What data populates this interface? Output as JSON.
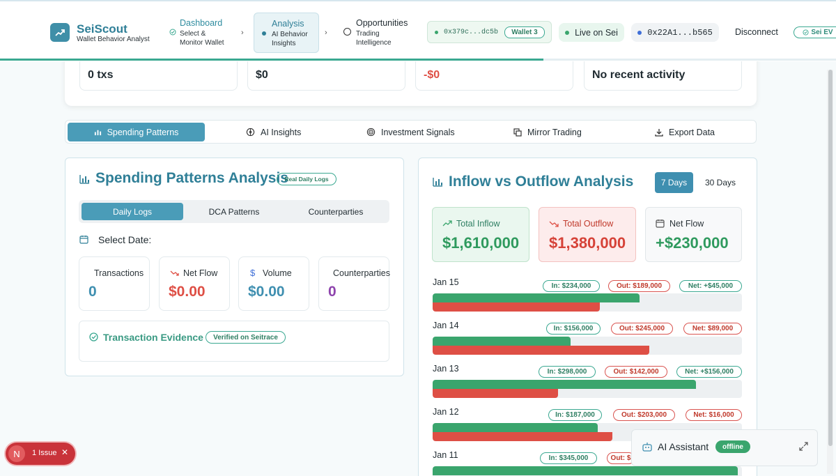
{
  "header": {
    "app_title": "SeiScout",
    "app_subtitle": "Wallet Behavior Analyst",
    "steps": [
      {
        "title": "Dashboard",
        "subtitle_line1": "Select &",
        "subtitle_line2": "Monitor Wallet"
      },
      {
        "title": "Analysis",
        "subtitle_line1": "AI Behavior",
        "subtitle_line2": "Insights"
      },
      {
        "title": "Opportunities",
        "subtitle_line1": "Trading",
        "subtitle_line2": "Intelligence"
      }
    ],
    "wallet_selector": {
      "address": "0x379c...dc5b",
      "label": "Wallet 3"
    },
    "network_status": "Live on Sei",
    "connected_address": "0x22A1...b565",
    "disconnect_label": "Disconnect",
    "sei_badge": "Sei EV",
    "progress": 0.65
  },
  "top_stats": [
    {
      "value": "0 txs"
    },
    {
      "value": "$0"
    },
    {
      "value": "-$0",
      "color": "#de4f45"
    },
    {
      "value": "No recent activity"
    }
  ],
  "tabs": [
    {
      "label": "Spending Patterns",
      "icon": "bar-chart-icon",
      "active": true
    },
    {
      "label": "AI Insights",
      "icon": "brain-icon"
    },
    {
      "label": "Investment Signals",
      "icon": "target-icon"
    },
    {
      "label": "Mirror Trading",
      "icon": "copy-icon"
    },
    {
      "label": "Export Data",
      "icon": "download-icon"
    }
  ],
  "spending": {
    "title": "Spending Patterns Analysis",
    "badge": "Real Daily Logs",
    "subtabs": [
      "Daily Logs",
      "DCA Patterns",
      "Counterparties"
    ],
    "select_date_label": "Select Date:",
    "stats": [
      {
        "label": "Transactions",
        "value": "0",
        "color": "#3f8fb0"
      },
      {
        "label": "Net Flow",
        "value": "$0.00",
        "color": "#de4f45"
      },
      {
        "label": "Volume",
        "value": "$0.00",
        "color": "#3f8fb0"
      },
      {
        "label": "Counterparties",
        "value": "0",
        "color": "#8e44ad"
      }
    ],
    "evidence_title": "Transaction Evidence",
    "evidence_badge": "Verified on Seitrace"
  },
  "flow": {
    "title": "Inflow vs Outflow Analysis",
    "toggles": [
      "7 Days",
      "30 Days"
    ],
    "active_toggle": "7 Days",
    "summary": {
      "inflow": {
        "label": "Total Inflow",
        "value": "$1,610,000"
      },
      "outflow": {
        "label": "Total Outflow",
        "value": "$1,380,000"
      },
      "net": {
        "label": "Net Flow",
        "value": "+$230,000"
      }
    },
    "scale_max": 350000,
    "days": [
      {
        "date": "Jan 15",
        "inflow": 234000,
        "outflow": 189000,
        "in_label": "In: $234,000",
        "out_label": "Out: $189,000",
        "net_label": "Net: +$45,000",
        "net_positive": true
      },
      {
        "date": "Jan 14",
        "inflow": 156000,
        "outflow": 245000,
        "in_label": "In: $156,000",
        "out_label": "Out: $245,000",
        "net_label": "Net: $89,000",
        "net_positive": false
      },
      {
        "date": "Jan 13",
        "inflow": 298000,
        "outflow": 142000,
        "in_label": "In: $298,000",
        "out_label": "Out: $142,000",
        "net_label": "Net: +$156,000",
        "net_positive": true
      },
      {
        "date": "Jan 12",
        "inflow": 187000,
        "outflow": 203000,
        "in_label": "In: $187,000",
        "out_label": "Out: $203,000",
        "net_label": "Net: $16,000",
        "net_positive": false
      },
      {
        "date": "Jan 11",
        "inflow": 345000,
        "outflow": null,
        "in_label": "In: $345,000",
        "out_label": "Out: $",
        "net_label": "",
        "net_positive": true
      }
    ]
  },
  "assistant": {
    "title": "AI Assistant",
    "status": "offline"
  },
  "issue_badge": {
    "initial": "N",
    "label": "1 Issue"
  }
}
